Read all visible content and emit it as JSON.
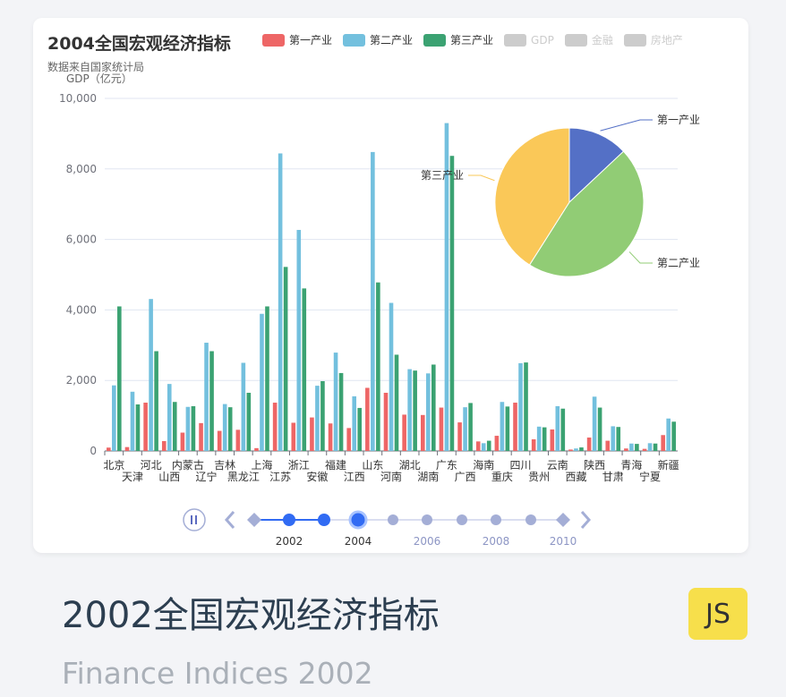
{
  "chart_title": "2004全国宏观经济指标",
  "chart_subtitle": "数据来自国家统计局",
  "y_axis_label": "GDP（亿元）",
  "legend": [
    {
      "name": "第一产业",
      "color": "#ee6666",
      "active": true
    },
    {
      "name": "第二产业",
      "color": "#73c0de",
      "active": true
    },
    {
      "name": "第三产业",
      "color": "#3ba272",
      "active": true
    },
    {
      "name": "GDP",
      "color": "#cccccc",
      "active": false
    },
    {
      "name": "金融",
      "color": "#cccccc",
      "active": false
    },
    {
      "name": "房地产",
      "color": "#cccccc",
      "active": false
    }
  ],
  "chart_data": {
    "type": "bar",
    "title": "2004全国宏观经济指标",
    "subtitle": "数据来自国家统计局",
    "ylabel": "GDP（亿元）",
    "ylim": [
      0,
      10000
    ],
    "yticks": [
      "0",
      "2,000",
      "4,000",
      "6,000",
      "8,000",
      "10,000"
    ],
    "categories": [
      "北京",
      "天津",
      "河北",
      "山西",
      "内蒙古",
      "辽宁",
      "吉林",
      "黑龙江",
      "上海",
      "江苏",
      "浙江",
      "安徽",
      "福建",
      "江西",
      "山东",
      "河南",
      "湖北",
      "湖南",
      "广东",
      "广西",
      "海南",
      "重庆",
      "四川",
      "贵州",
      "云南",
      "西藏",
      "陕西",
      "甘肃",
      "青海",
      "宁夏",
      "新疆"
    ],
    "series": [
      {
        "name": "第一产业",
        "color": "#ee6666",
        "values": [
          95,
          110,
          1370,
          280,
          520,
          790,
          570,
          600,
          80,
          1370,
          800,
          950,
          780,
          650,
          1790,
          1650,
          1030,
          1020,
          1230,
          810,
          270,
          430,
          1370,
          330,
          610,
          40,
          380,
          290,
          70,
          60,
          450
        ]
      },
      {
        "name": "第二产业",
        "color": "#73c0de",
        "values": [
          1860,
          1680,
          4310,
          1900,
          1250,
          3070,
          1330,
          2500,
          3890,
          8440,
          6270,
          1850,
          2790,
          1550,
          8480,
          4200,
          2320,
          2200,
          9300,
          1240,
          220,
          1390,
          2490,
          690,
          1270,
          70,
          1540,
          700,
          210,
          220,
          920
        ]
      },
      {
        "name": "第三产业",
        "color": "#3ba272",
        "values": [
          4100,
          1320,
          2830,
          1390,
          1270,
          2830,
          1240,
          1650,
          4100,
          5220,
          4610,
          1980,
          2210,
          1220,
          4780,
          2730,
          2280,
          2450,
          8370,
          1360,
          290,
          1260,
          2510,
          670,
          1200,
          100,
          1230,
          680,
          200,
          210,
          830
        ]
      }
    ],
    "pie": {
      "title": "",
      "slices": [
        {
          "name": "第一产业",
          "value": 13
        },
        {
          "name": "第二产业",
          "value": 46
        },
        {
          "name": "第三产业",
          "value": 41
        }
      ],
      "colors": [
        "#5470c6",
        "#91cc75",
        "#fac858"
      ]
    }
  },
  "timeline": {
    "labels": [
      "2002",
      "2004",
      "2006",
      "2008",
      "2010"
    ],
    "current": "2004"
  },
  "footer": {
    "title": "2002全国宏观经济指标",
    "subtitle": "Finance Indices 2002",
    "badge": "JS"
  }
}
